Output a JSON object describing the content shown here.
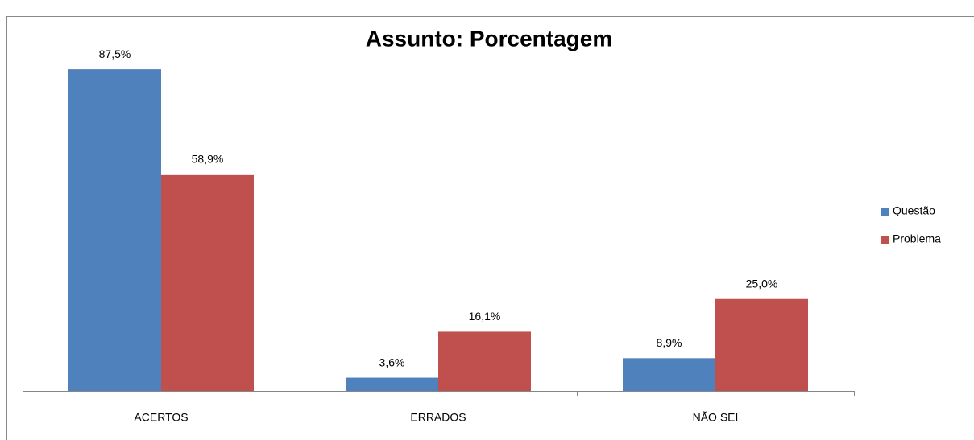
{
  "chart_data": {
    "type": "bar",
    "title": "Assunto: Porcentagem",
    "categories": [
      "ACERTOS",
      "ERRADOS",
      "NÃO SEI"
    ],
    "series": [
      {
        "name": "Questão",
        "color": "#4f81bd",
        "values": [
          87.5,
          3.6,
          8.9
        ],
        "value_labels": [
          "87,5%",
          "3,6%",
          "8,9%"
        ]
      },
      {
        "name": "Problema",
        "color": "#c0504d",
        "values": [
          58.9,
          16.1,
          25.0
        ],
        "value_labels": [
          "58,9%",
          "16,1%",
          "25,0%"
        ]
      }
    ],
    "ylim": [
      0,
      100
    ],
    "legend": "right"
  }
}
